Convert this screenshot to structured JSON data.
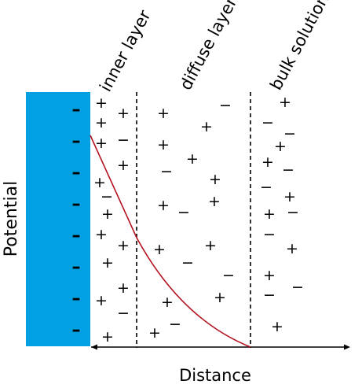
{
  "labels": {
    "inner_layer": "inner layer",
    "diffuse_layer": "diffuse layer",
    "bulk_solution": "bulk solution",
    "y_axis": "Potential",
    "x_axis": "Distance"
  },
  "colors": {
    "electrode": "#00a0e3",
    "potential_curve": "#b5131f",
    "ink": "#000000"
  },
  "symbols": {
    "plus": "+",
    "minus": "−",
    "electrode_charge": "–"
  }
}
